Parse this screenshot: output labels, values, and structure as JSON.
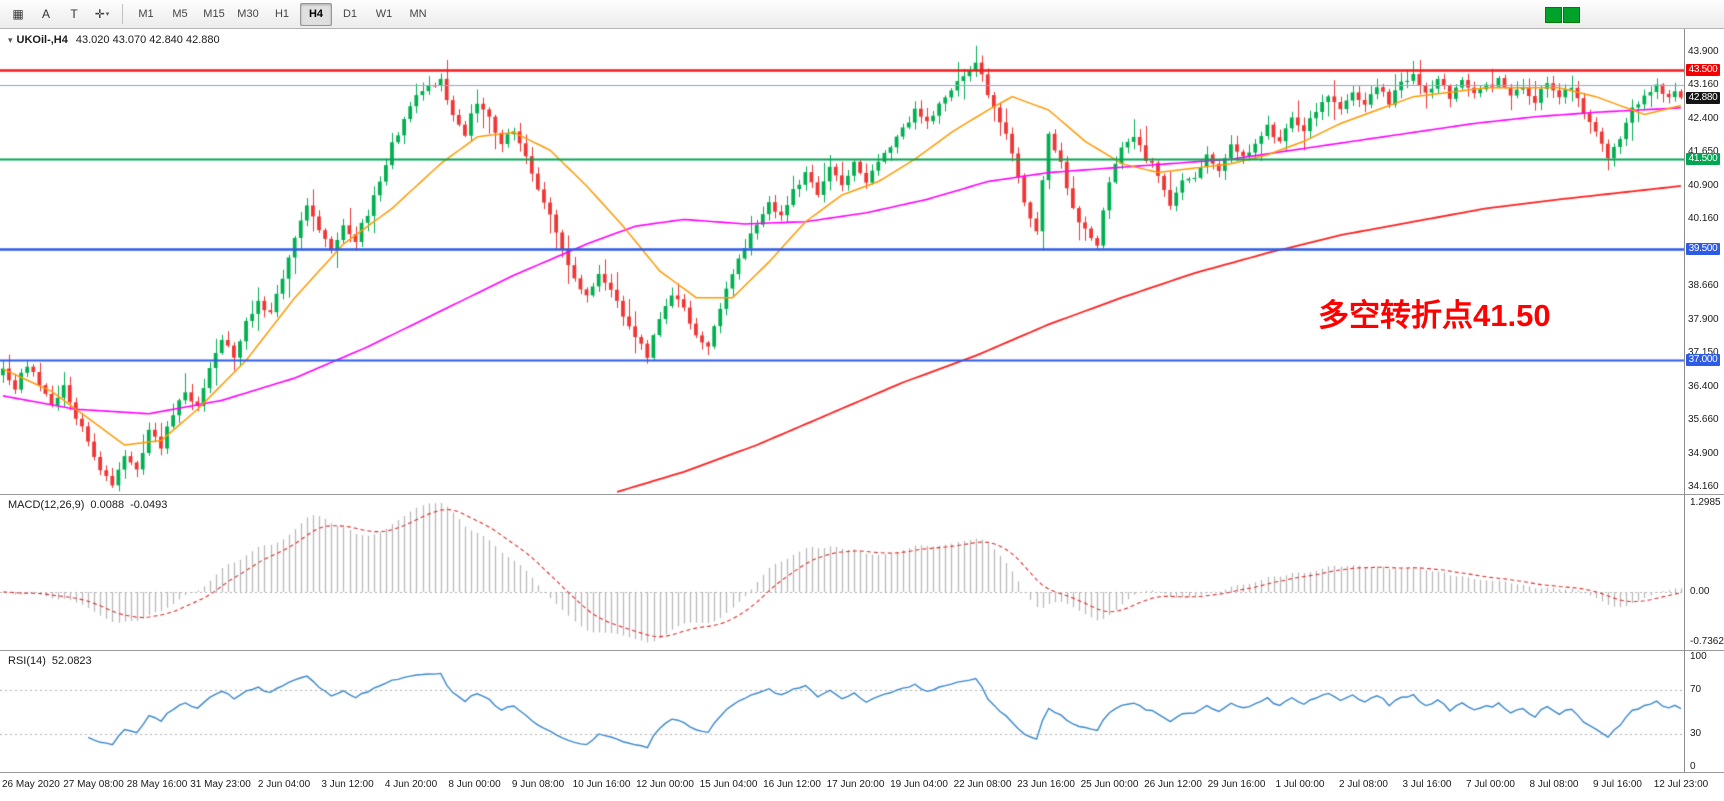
{
  "toolbar": {
    "tools": [
      {
        "name": "chart-objects-icon",
        "glyph": "▦"
      },
      {
        "name": "text-annotation-icon",
        "glyph": "A"
      },
      {
        "name": "text-label-icon",
        "glyph": "T"
      },
      {
        "name": "draw-tools-icon",
        "glyph": "✛",
        "caret": "▾"
      }
    ],
    "timeframes": [
      "M1",
      "M5",
      "M15",
      "M30",
      "H1",
      "H4",
      "D1",
      "W1",
      "MN"
    ],
    "active_timeframe": "H4",
    "status_blocks": [
      "#00a32a",
      "#00a32a"
    ]
  },
  "chart": {
    "symbol": "UKOil-,H4",
    "ohlc": "43.020 43.070 42.840 42.880",
    "last_price": "42.880",
    "collapse_glyph": "▾",
    "annotation": {
      "text": "多空转折点41.50",
      "color": "#ff0000"
    }
  },
  "panels": {
    "macd": {
      "name": "MACD(12,26,9)",
      "main": "0.0088",
      "signal": "-0.0493",
      "axis": [
        "1.2985",
        "0.00",
        "-0.7362"
      ]
    },
    "rsi": {
      "name": "RSI(14)",
      "value": "52.0823",
      "levels": [
        70,
        30
      ],
      "axis": [
        "100",
        "70",
        "30",
        "0"
      ]
    }
  },
  "price_axis": {
    "ticks": [
      {
        "label": "43.900",
        "value": 43.9
      },
      {
        "label": "43.160",
        "value": 43.16
      },
      {
        "label": "42.400",
        "value": 42.4
      },
      {
        "label": "41.650",
        "value": 41.65
      },
      {
        "label": "40.900",
        "value": 40.9
      },
      {
        "label": "40.160",
        "value": 40.16
      },
      {
        "label": "39.410",
        "value": 39.41
      },
      {
        "label": "38.660",
        "value": 38.66
      },
      {
        "label": "37.900",
        "value": 37.9
      },
      {
        "label": "37.150",
        "value": 37.15
      },
      {
        "label": "36.400",
        "value": 36.4
      },
      {
        "label": "35.660",
        "value": 35.66
      },
      {
        "label": "34.900",
        "value": 34.9
      },
      {
        "label": "34.160",
        "value": 34.16
      }
    ],
    "tags": [
      {
        "label": "43.500",
        "value": 43.5,
        "color": "#f50000"
      },
      {
        "label": "42.880",
        "value": 42.88,
        "color": "#151515"
      },
      {
        "label": "41.500",
        "value": 41.5,
        "color": "#00a651"
      },
      {
        "label": "39.500",
        "value": 39.5,
        "color": "#2d5be8"
      },
      {
        "label": "37.000",
        "value": 37.0,
        "color": "#2d5be8"
      }
    ]
  },
  "colors": {
    "up": "#00b050",
    "down": "#f03535",
    "ma_fast": "#ff9900",
    "ma_mid": "#ff00ff",
    "ma_slow": "#ff2020",
    "macd_hist": "#b9b9b9",
    "macd_signal": "#e03030",
    "rsi_line": "#3b87cc",
    "dotted": "#b0b0b0"
  },
  "chart_data": {
    "type": "candlestick",
    "symbol": "UKOil-",
    "timeframe": "H4",
    "bars": 277,
    "price_range": [
      34.16,
      43.9
    ],
    "hlines": [
      {
        "price": 43.5,
        "color": "#ee1c1c",
        "width": 2.4
      },
      {
        "price": 43.16,
        "color": "#8ba7cf",
        "width": 1.2
      },
      {
        "price": 41.5,
        "color": "#00a651",
        "width": 2.0
      },
      {
        "price": 39.5,
        "color": "#2d5be8",
        "width": 2.4
      },
      {
        "price": 37.0,
        "color": "#2d5be8",
        "width": 2.0
      }
    ],
    "close_path": [
      [
        0,
        36.8
      ],
      [
        2,
        36.4
      ],
      [
        4,
        36.9
      ],
      [
        6,
        36.5
      ],
      [
        8,
        36.0
      ],
      [
        10,
        36.4
      ],
      [
        12,
        35.7
      ],
      [
        14,
        35.2
      ],
      [
        16,
        34.6
      ],
      [
        18,
        34.25
      ],
      [
        20,
        34.9
      ],
      [
        22,
        34.5
      ],
      [
        24,
        35.4
      ],
      [
        26,
        35.1
      ],
      [
        28,
        35.8
      ],
      [
        30,
        36.3
      ],
      [
        32,
        36.0
      ],
      [
        34,
        36.8
      ],
      [
        36,
        37.4
      ],
      [
        38,
        37.1
      ],
      [
        40,
        37.8
      ],
      [
        42,
        38.3
      ],
      [
        44,
        38.0
      ],
      [
        46,
        38.9
      ],
      [
        48,
        39.8
      ],
      [
        50,
        40.4
      ],
      [
        52,
        39.9
      ],
      [
        54,
        39.5
      ],
      [
        56,
        40.0
      ],
      [
        58,
        39.7
      ],
      [
        60,
        40.3
      ],
      [
        62,
        41.0
      ],
      [
        64,
        41.8
      ],
      [
        66,
        42.4
      ],
      [
        68,
        42.9
      ],
      [
        70,
        43.1
      ],
      [
        72,
        43.3
      ],
      [
        74,
        42.5
      ],
      [
        76,
        42.1
      ],
      [
        78,
        42.8
      ],
      [
        80,
        42.4
      ],
      [
        82,
        41.9
      ],
      [
        84,
        42.2
      ],
      [
        86,
        41.5
      ],
      [
        88,
        40.8
      ],
      [
        90,
        40.2
      ],
      [
        92,
        39.5
      ],
      [
        94,
        38.8
      ],
      [
        96,
        38.4
      ],
      [
        98,
        38.9
      ],
      [
        100,
        38.6
      ],
      [
        102,
        38.0
      ],
      [
        104,
        37.5
      ],
      [
        106,
        37.1
      ],
      [
        108,
        38.0
      ],
      [
        110,
        38.5
      ],
      [
        112,
        38.1
      ],
      [
        114,
        37.6
      ],
      [
        116,
        37.3
      ],
      [
        118,
        38.2
      ],
      [
        120,
        39.0
      ],
      [
        122,
        39.5
      ],
      [
        124,
        40.1
      ],
      [
        126,
        40.5
      ],
      [
        128,
        40.2
      ],
      [
        130,
        40.8
      ],
      [
        132,
        41.2
      ],
      [
        134,
        40.7
      ],
      [
        136,
        41.3
      ],
      [
        138,
        40.9
      ],
      [
        140,
        41.5
      ],
      [
        142,
        41.0
      ],
      [
        144,
        41.4
      ],
      [
        146,
        41.8
      ],
      [
        148,
        42.2
      ],
      [
        150,
        42.6
      ],
      [
        152,
        42.3
      ],
      [
        154,
        42.8
      ],
      [
        156,
        43.1
      ],
      [
        158,
        43.3
      ],
      [
        160,
        43.7
      ],
      [
        162,
        43.0
      ],
      [
        164,
        42.4
      ],
      [
        166,
        41.7
      ],
      [
        168,
        40.5
      ],
      [
        170,
        39.9
      ],
      [
        172,
        42.0
      ],
      [
        174,
        41.4
      ],
      [
        176,
        40.4
      ],
      [
        178,
        39.9
      ],
      [
        180,
        39.6
      ],
      [
        182,
        41.0
      ],
      [
        184,
        41.7
      ],
      [
        186,
        42.0
      ],
      [
        188,
        41.5
      ],
      [
        190,
        41.2
      ],
      [
        192,
        40.4
      ],
      [
        194,
        41.0
      ],
      [
        196,
        41.1
      ],
      [
        198,
        41.6
      ],
      [
        200,
        41.3
      ],
      [
        202,
        41.8
      ],
      [
        204,
        41.5
      ],
      [
        206,
        41.9
      ],
      [
        208,
        42.2
      ],
      [
        210,
        41.9
      ],
      [
        212,
        42.4
      ],
      [
        214,
        42.1
      ],
      [
        216,
        42.6
      ],
      [
        218,
        42.9
      ],
      [
        220,
        42.6
      ],
      [
        222,
        43.0
      ],
      [
        224,
        42.7
      ],
      [
        226,
        43.1
      ],
      [
        228,
        42.8
      ],
      [
        230,
        43.2
      ],
      [
        232,
        43.4
      ],
      [
        234,
        43.0
      ],
      [
        236,
        43.3
      ],
      [
        238,
        42.9
      ],
      [
        240,
        43.2
      ],
      [
        242,
        42.9
      ],
      [
        244,
        43.1
      ],
      [
        246,
        43.3
      ],
      [
        248,
        42.9
      ],
      [
        250,
        43.1
      ],
      [
        252,
        42.8
      ],
      [
        254,
        43.2
      ],
      [
        256,
        42.9
      ],
      [
        258,
        43.1
      ],
      [
        260,
        42.6
      ],
      [
        262,
        42.1
      ],
      [
        264,
        41.6
      ],
      [
        266,
        41.9
      ],
      [
        268,
        42.6
      ],
      [
        270,
        43.0
      ],
      [
        272,
        43.1
      ],
      [
        274,
        42.95
      ],
      [
        276,
        42.88
      ]
    ],
    "ma_fast_path": [
      [
        0,
        36.8
      ],
      [
        8,
        36.3
      ],
      [
        14,
        35.7
      ],
      [
        20,
        35.1
      ],
      [
        26,
        35.2
      ],
      [
        32,
        35.9
      ],
      [
        40,
        37.0
      ],
      [
        48,
        38.4
      ],
      [
        56,
        39.6
      ],
      [
        64,
        40.4
      ],
      [
        72,
        41.4
      ],
      [
        78,
        42.0
      ],
      [
        84,
        42.1
      ],
      [
        90,
        41.7
      ],
      [
        96,
        40.9
      ],
      [
        102,
        40.0
      ],
      [
        108,
        39.0
      ],
      [
        114,
        38.4
      ],
      [
        120,
        38.4
      ],
      [
        126,
        39.2
      ],
      [
        132,
        40.1
      ],
      [
        138,
        40.7
      ],
      [
        144,
        41.0
      ],
      [
        150,
        41.5
      ],
      [
        156,
        42.1
      ],
      [
        162,
        42.6
      ],
      [
        166,
        42.9
      ],
      [
        172,
        42.6
      ],
      [
        178,
        41.9
      ],
      [
        184,
        41.4
      ],
      [
        190,
        41.2
      ],
      [
        196,
        41.3
      ],
      [
        202,
        41.4
      ],
      [
        208,
        41.6
      ],
      [
        214,
        41.9
      ],
      [
        220,
        42.3
      ],
      [
        226,
        42.6
      ],
      [
        232,
        42.9
      ],
      [
        238,
        43.0
      ],
      [
        244,
        43.1
      ],
      [
        250,
        43.1
      ],
      [
        256,
        43.1
      ],
      [
        262,
        42.9
      ],
      [
        266,
        42.7
      ],
      [
        270,
        42.5
      ],
      [
        276,
        42.7
      ]
    ],
    "ma_mid_path": [
      [
        0,
        36.2
      ],
      [
        12,
        35.9
      ],
      [
        24,
        35.8
      ],
      [
        36,
        36.1
      ],
      [
        48,
        36.6
      ],
      [
        60,
        37.3
      ],
      [
        72,
        38.1
      ],
      [
        84,
        38.9
      ],
      [
        96,
        39.6
      ],
      [
        104,
        40.0
      ],
      [
        112,
        40.15
      ],
      [
        122,
        40.05
      ],
      [
        132,
        40.1
      ],
      [
        142,
        40.3
      ],
      [
        152,
        40.6
      ],
      [
        162,
        41.0
      ],
      [
        172,
        41.2
      ],
      [
        182,
        41.3
      ],
      [
        192,
        41.4
      ],
      [
        202,
        41.5
      ],
      [
        212,
        41.7
      ],
      [
        222,
        41.9
      ],
      [
        232,
        42.1
      ],
      [
        242,
        42.3
      ],
      [
        252,
        42.45
      ],
      [
        262,
        42.55
      ],
      [
        276,
        42.65
      ]
    ],
    "ma_slow_path": [
      [
        101,
        34.05
      ],
      [
        112,
        34.5
      ],
      [
        124,
        35.1
      ],
      [
        136,
        35.8
      ],
      [
        148,
        36.5
      ],
      [
        160,
        37.1
      ],
      [
        172,
        37.8
      ],
      [
        184,
        38.4
      ],
      [
        196,
        38.95
      ],
      [
        208,
        39.4
      ],
      [
        220,
        39.8
      ],
      [
        232,
        40.1
      ],
      [
        244,
        40.4
      ],
      [
        256,
        40.6
      ],
      [
        266,
        40.75
      ],
      [
        276,
        40.9
      ]
    ],
    "indicators": [
      {
        "name": "MACD",
        "params": "12,26,9",
        "current": [
          0.0088,
          -0.0493
        ],
        "range": [
          -0.7362,
          1.2985
        ]
      },
      {
        "name": "RSI",
        "params": "14",
        "current": 52.0823,
        "levels": [
          30,
          70
        ],
        "range": [
          0,
          100
        ]
      }
    ],
    "time_labels": [
      "26 May 2020",
      "27 May 08:00",
      "28 May 16:00",
      "31 May 23:00",
      "2 Jun 04:00",
      "3 Jun 12:00",
      "4 Jun 20:00",
      "8 Jun 00:00",
      "9 Jun 08:00",
      "10 Jun 16:00",
      "12 Jun 00:00",
      "15 Jun 04:00",
      "16 Jun 12:00",
      "17 Jun 20:00",
      "19 Jun 04:00",
      "22 Jun 08:00",
      "23 Jun 16:00",
      "25 Jun 00:00",
      "26 Jun 12:00",
      "29 Jun 16:00",
      "1 Jul 00:00",
      "2 Jul 08:00",
      "3 Jul 16:00",
      "7 Jul 00:00",
      "8 Jul 08:00",
      "9 Jul 16:00",
      "12 Jul 23:00"
    ]
  }
}
